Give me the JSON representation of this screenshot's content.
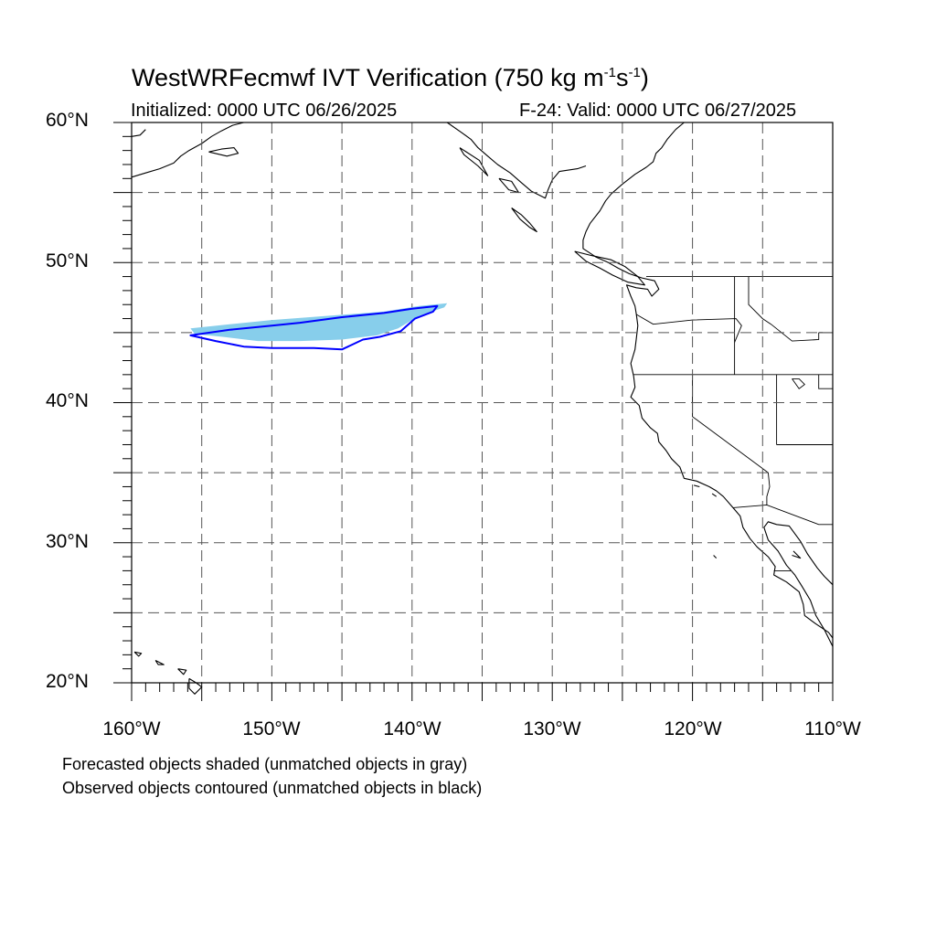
{
  "figure": {
    "title_main": "WestWRFecmwf IVT Verification (750 kg m",
    "title_exp1": "-1",
    "title_mid": "s",
    "title_exp2": "-1",
    "title_end": ")",
    "init_label": "Initialized: 0000 UTC 06/26/2025",
    "valid_label": "F-24: Valid: 0000 UTC 06/27/2025",
    "lat_labels": [
      "60°N",
      "50°N",
      "40°N",
      "30°N",
      "20°N"
    ],
    "lon_labels": [
      "160°W",
      "150°W",
      "140°W",
      "130°W",
      "120°W",
      "110°W"
    ],
    "notes": [
      "Forecasted objects shaded (unmatched objects in gray)",
      "Observed objects contoured (unmatched objects in black)"
    ]
  },
  "map_data": {
    "projection": "cylindrical-equidistant",
    "lon_range": [
      -160,
      -110
    ],
    "lat_range": [
      20,
      60
    ],
    "grid_lons": [
      -155,
      -150,
      -145,
      -140,
      -135,
      -130,
      -125,
      -120,
      -115
    ],
    "grid_lats": [
      55,
      50,
      45,
      40,
      35,
      30,
      25
    ],
    "colors": {
      "forecast_fill": "#87ceeb",
      "observed_contour": "#0000ff",
      "coastline": "#000000",
      "grid": "#555555"
    },
    "forecast_object": [
      [
        -155.8,
        45.3
      ],
      [
        -153,
        45.6
      ],
      [
        -150,
        45.9
      ],
      [
        -146,
        46.2
      ],
      [
        -142,
        46.5
      ],
      [
        -139.5,
        46.9
      ],
      [
        -137.5,
        47.1
      ],
      [
        -137.7,
        46.8
      ],
      [
        -139.5,
        46.2
      ],
      [
        -141,
        45.3
      ],
      [
        -142.5,
        44.8
      ],
      [
        -145,
        44.5
      ],
      [
        -148,
        44.4
      ],
      [
        -151,
        44.4
      ],
      [
        -153.5,
        44.7
      ],
      [
        -155.5,
        44.9
      ]
    ],
    "observed_object": [
      [
        -155.8,
        44.8
      ],
      [
        -153,
        45.2
      ],
      [
        -150,
        45.5
      ],
      [
        -148,
        45.7
      ],
      [
        -145,
        46.1
      ],
      [
        -142,
        46.4
      ],
      [
        -140,
        46.7
      ],
      [
        -138.2,
        46.9
      ],
      [
        -138.5,
        46.5
      ],
      [
        -139.8,
        46.0
      ],
      [
        -140.8,
        45.1
      ],
      [
        -142.3,
        44.7
      ],
      [
        -143.5,
        44.5
      ],
      [
        -145,
        43.8
      ],
      [
        -147,
        43.9
      ],
      [
        -150,
        43.9
      ],
      [
        -152,
        44.0
      ],
      [
        -154,
        44.4
      ],
      [
        -155.8,
        44.8
      ]
    ],
    "coastlines": [
      [
        [
          -120.6,
          60
        ],
        [
          -121.2,
          59.5
        ],
        [
          -121.8,
          58.8
        ],
        [
          -122.2,
          58.2
        ],
        [
          -122.6,
          57.8
        ],
        [
          -122.8,
          57.2
        ],
        [
          -123.3,
          56.8
        ],
        [
          -124.1,
          56.3
        ],
        [
          -125,
          55.6
        ],
        [
          -125.8,
          54.9
        ],
        [
          -126.2,
          54.4
        ],
        [
          -126.6,
          53.7
        ],
        [
          -127.3,
          52.8
        ],
        [
          -127.6,
          52.2
        ],
        [
          -127.8,
          51.6
        ],
        [
          -127.8,
          51.0
        ],
        [
          -126.9,
          50.4
        ],
        [
          -126,
          50.0
        ],
        [
          -125.3,
          49.6
        ],
        [
          -124.5,
          49.2
        ],
        [
          -123.6,
          48.9
        ],
        [
          -122.7,
          48.7
        ],
        [
          -122.4,
          48.1
        ],
        [
          -122.9,
          47.6
        ],
        [
          -123.2,
          48.1
        ],
        [
          -124.0,
          48.2
        ],
        [
          -124.7,
          48.4
        ],
        [
          -124.4,
          47.6
        ],
        [
          -124.1,
          46.9
        ],
        [
          -124.0,
          46.3
        ],
        [
          -123.9,
          45.5
        ],
        [
          -124.0,
          44.6
        ],
        [
          -124.1,
          43.8
        ],
        [
          -124.4,
          42.8
        ],
        [
          -124.2,
          41.9
        ],
        [
          -124.1,
          41.1
        ],
        [
          -124.4,
          40.4
        ],
        [
          -123.8,
          39.8
        ],
        [
          -123.6,
          38.9
        ],
        [
          -123.0,
          38.2
        ],
        [
          -122.5,
          37.8
        ],
        [
          -122.4,
          37.2
        ],
        [
          -121.9,
          36.6
        ],
        [
          -121.5,
          36.0
        ],
        [
          -120.9,
          35.4
        ],
        [
          -120.6,
          34.6
        ],
        [
          -119.7,
          34.4
        ],
        [
          -118.8,
          34.0
        ],
        [
          -118.3,
          33.7
        ],
        [
          -117.8,
          33.3
        ],
        [
          -117.2,
          32.6
        ],
        [
          -116.6,
          31.9
        ],
        [
          -116.4,
          31.1
        ],
        [
          -115.9,
          30.3
        ],
        [
          -115.4,
          29.7
        ],
        [
          -114.6,
          29.0
        ],
        [
          -114.1,
          28.3
        ],
        [
          -114.2,
          27.7
        ],
        [
          -113.3,
          27.2
        ],
        [
          -112.4,
          26.5
        ],
        [
          -112.1,
          25.6
        ],
        [
          -112.0,
          24.8
        ],
        [
          -111.2,
          24.2
        ],
        [
          -110.3,
          23.6
        ],
        [
          -110,
          23.2
        ]
      ],
      [
        [
          -110,
          22.6
        ],
        [
          -110.6,
          23.8
        ],
        [
          -111.2,
          24.8
        ],
        [
          -111.6,
          25.9
        ],
        [
          -112.2,
          26.9
        ],
        [
          -112.7,
          27.7
        ],
        [
          -113.3,
          28.4
        ],
        [
          -113.9,
          29.4
        ],
        [
          -114.6,
          30.2
        ],
        [
          -114.9,
          31.1
        ],
        [
          -114.6,
          31.5
        ],
        [
          -114.0,
          31.3
        ],
        [
          -113.1,
          31.2
        ],
        [
          -112.3,
          30.1
        ],
        [
          -111.8,
          29.2
        ],
        [
          -111.1,
          28.2
        ],
        [
          -110.6,
          27.6
        ],
        [
          -110,
          27.0
        ]
      ],
      [
        [
          -137.5,
          60
        ],
        [
          -136.5,
          59.3
        ],
        [
          -135.8,
          58.8
        ],
        [
          -135.3,
          58.2
        ],
        [
          -134.6,
          57.6
        ],
        [
          -133.9,
          57.0
        ],
        [
          -133.0,
          56.4
        ],
        [
          -132.2,
          55.7
        ],
        [
          -131.5,
          55.1
        ],
        [
          -130.5,
          54.6
        ],
        [
          -130.3,
          55.2
        ],
        [
          -130.0,
          55.9
        ],
        [
          -129.5,
          56.5
        ],
        [
          -128.2,
          56.7
        ],
        [
          -127.6,
          56.9
        ]
      ],
      [
        [
          -160,
          56.1
        ],
        [
          -159.0,
          56.4
        ],
        [
          -158.0,
          56.7
        ],
        [
          -157.0,
          57.1
        ],
        [
          -156.5,
          57.6
        ],
        [
          -155.9,
          58.0
        ],
        [
          -155.0,
          58.5
        ],
        [
          -154.3,
          59.0
        ],
        [
          -153.6,
          59.4
        ],
        [
          -152.8,
          59.8
        ],
        [
          -152.0,
          60
        ]
      ],
      [
        [
          -160,
          59.0
        ],
        [
          -159.4,
          59.1
        ],
        [
          -159.0,
          59.5
        ]
      ],
      [
        [
          -154.5,
          57.9
        ],
        [
          -153.2,
          57.6
        ],
        [
          -152.4,
          57.8
        ],
        [
          -152.7,
          58.2
        ],
        [
          -153.6,
          58.1
        ],
        [
          -154.5,
          57.9
        ]
      ],
      [
        [
          -132.9,
          53.9
        ],
        [
          -132.2,
          53.4
        ],
        [
          -131.6,
          52.8
        ],
        [
          -131.1,
          52.2
        ],
        [
          -131.6,
          52.5
        ],
        [
          -132.3,
          53.1
        ],
        [
          -132.9,
          53.9
        ]
      ],
      [
        [
          -128.4,
          50.8
        ],
        [
          -127.2,
          50.5
        ],
        [
          -125.8,
          50.2
        ],
        [
          -124.8,
          49.7
        ],
        [
          -123.9,
          49.0
        ],
        [
          -123.4,
          48.4
        ],
        [
          -124.6,
          48.6
        ],
        [
          -125.7,
          49.1
        ],
        [
          -126.6,
          49.6
        ],
        [
          -127.6,
          50.1
        ],
        [
          -128.4,
          50.8
        ]
      ],
      [
        [
          -136.6,
          58.2
        ],
        [
          -135.2,
          57.3
        ],
        [
          -134.6,
          56.2
        ],
        [
          -135.3,
          56.9
        ],
        [
          -136.3,
          57.7
        ],
        [
          -136.6,
          58.2
        ]
      ],
      [
        [
          -133.8,
          56.0
        ],
        [
          -133.1,
          55.2
        ],
        [
          -132.4,
          55.0
        ],
        [
          -132.9,
          55.8
        ],
        [
          -133.8,
          56.0
        ]
      ],
      [
        [
          -155.9,
          20.3
        ],
        [
          -155.4,
          20.0
        ],
        [
          -155.0,
          19.7
        ],
        [
          -155.5,
          19.2
        ],
        [
          -155.9,
          19.6
        ],
        [
          -155.9,
          20.3
        ]
      ],
      [
        [
          -156.7,
          21.0
        ],
        [
          -156.1,
          20.9
        ],
        [
          -156.3,
          20.6
        ],
        [
          -156.7,
          21.0
        ]
      ],
      [
        [
          -158.3,
          21.6
        ],
        [
          -157.7,
          21.3
        ],
        [
          -158.1,
          21.3
        ],
        [
          -158.3,
          21.6
        ]
      ],
      [
        [
          -159.8,
          22.2
        ],
        [
          -159.3,
          22.1
        ],
        [
          -159.5,
          21.9
        ],
        [
          -159.8,
          22.2
        ]
      ],
      [
        [
          -118.6,
          33.5
        ],
        [
          -118.3,
          33.3
        ]
      ],
      [
        [
          -119.9,
          34.1
        ],
        [
          -119.5,
          34.0
        ]
      ],
      [
        [
          -118.5,
          29.1
        ],
        [
          -118.3,
          28.9
        ]
      ],
      [
        [
          -112.9,
          29.1
        ],
        [
          -112.3,
          28.9
        ],
        [
          -112.8,
          29.4
        ]
      ]
    ],
    "borders": [
      [
        [
          -123.3,
          49
        ],
        [
          -110,
          49
        ]
      ],
      [
        [
          -110,
          42
        ],
        [
          -124.2,
          42
        ]
      ],
      [
        [
          -120,
          42
        ],
        [
          -120,
          39
        ],
        [
          -114.6,
          35
        ]
      ],
      [
        [
          -124.0,
          46.3
        ],
        [
          -122.8,
          45.6
        ],
        [
          -120.0,
          45.9
        ],
        [
          -116.9,
          46.0
        ],
        [
          -116.5,
          45.5
        ],
        [
          -117.0,
          44.3
        ]
      ],
      [
        [
          -117.0,
          42
        ],
        [
          -117.0,
          49
        ]
      ],
      [
        [
          -116.0,
          49
        ],
        [
          -116.0,
          47
        ],
        [
          -115.0,
          46
        ],
        [
          -114.4,
          45.6
        ],
        [
          -112.9,
          44.4
        ],
        [
          -111.0,
          44.5
        ],
        [
          -111.0,
          45
        ]
      ],
      [
        [
          -114.0,
          42
        ],
        [
          -114.0,
          37
        ]
      ],
      [
        [
          -114.0,
          37
        ],
        [
          -110,
          37
        ]
      ],
      [
        [
          -114.6,
          35
        ],
        [
          -114.5,
          34
        ],
        [
          -114.7,
          33.3
        ],
        [
          -114.7,
          32.7
        ]
      ],
      [
        [
          -117.1,
          32.5
        ],
        [
          -114.7,
          32.7
        ],
        [
          -111.0,
          31.3
        ],
        [
          -110,
          31.3
        ]
      ],
      [
        [
          -114.2,
          28.0
        ],
        [
          -113.0,
          28.0
        ]
      ],
      [
        [
          -111.0,
          45
        ],
        [
          -110,
          45
        ]
      ],
      [
        [
          -111.0,
          42
        ],
        [
          -111.0,
          41
        ],
        [
          -110,
          41
        ]
      ]
    ],
    "lakes": [
      [
        [
          -112.9,
          41.7
        ],
        [
          -112.4,
          41.0
        ],
        [
          -112.0,
          41.3
        ],
        [
          -112.4,
          41.7
        ],
        [
          -112.9,
          41.7
        ]
      ]
    ]
  }
}
